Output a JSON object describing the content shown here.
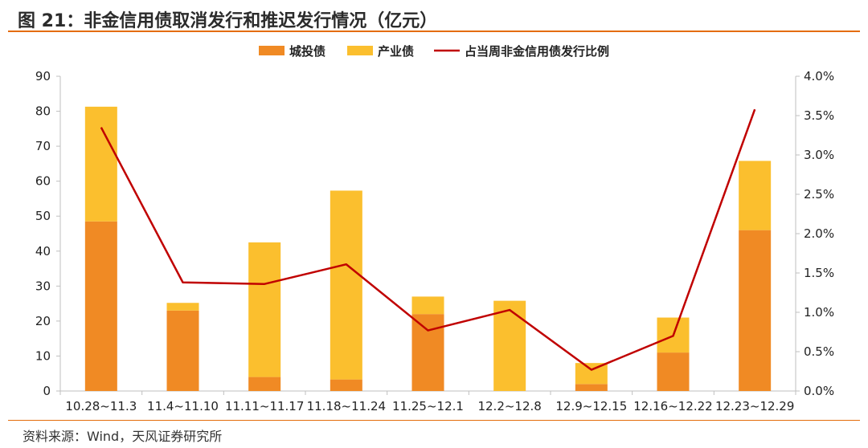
{
  "title": "图 21：非金信用债取消发行和推迟发行情况（亿元）",
  "source": "资料来源：Wind，天风证券研究所",
  "colors": {
    "cty": "#f08a24",
    "ind": "#fbbf2e",
    "ratio": "#c00000",
    "accent": "#e46c0a"
  },
  "chart_data": {
    "type": "bar",
    "stacked": true,
    "categories": [
      "10.28~11.3",
      "11.4~11.10",
      "11.11~11.17",
      "11.18~11.24",
      "11.25~12.1",
      "12.2~12.8",
      "12.9~12.15",
      "12.16~12.22",
      "12.23~12.29"
    ],
    "series": [
      {
        "name": "城投债",
        "type": "bar",
        "axis": "left",
        "values": [
          48.5,
          23.0,
          4.0,
          3.3,
          22.0,
          0,
          2.0,
          11.0,
          46.0
        ]
      },
      {
        "name": "产业债",
        "type": "bar",
        "axis": "left",
        "values": [
          32.8,
          2.2,
          38.5,
          54.0,
          5.0,
          25.8,
          6.0,
          10.0,
          19.8
        ]
      },
      {
        "name": "占当周非金信用债发行比例",
        "type": "line",
        "axis": "right",
        "values": [
          3.35,
          1.38,
          1.36,
          1.61,
          0.77,
          1.03,
          0.27,
          0.7,
          3.58
        ]
      }
    ],
    "ylim": [
      0,
      90
    ],
    "yticks": [
      "0",
      "10",
      "20",
      "30",
      "40",
      "50",
      "60",
      "70",
      "80",
      "90"
    ],
    "y2lim": [
      0,
      4.0
    ],
    "y2ticks": [
      "0.0%",
      "0.5%",
      "1.0%",
      "1.5%",
      "2.0%",
      "2.5%",
      "3.0%",
      "3.5%",
      "4.0%"
    ],
    "legend": "top",
    "grid": false
  }
}
